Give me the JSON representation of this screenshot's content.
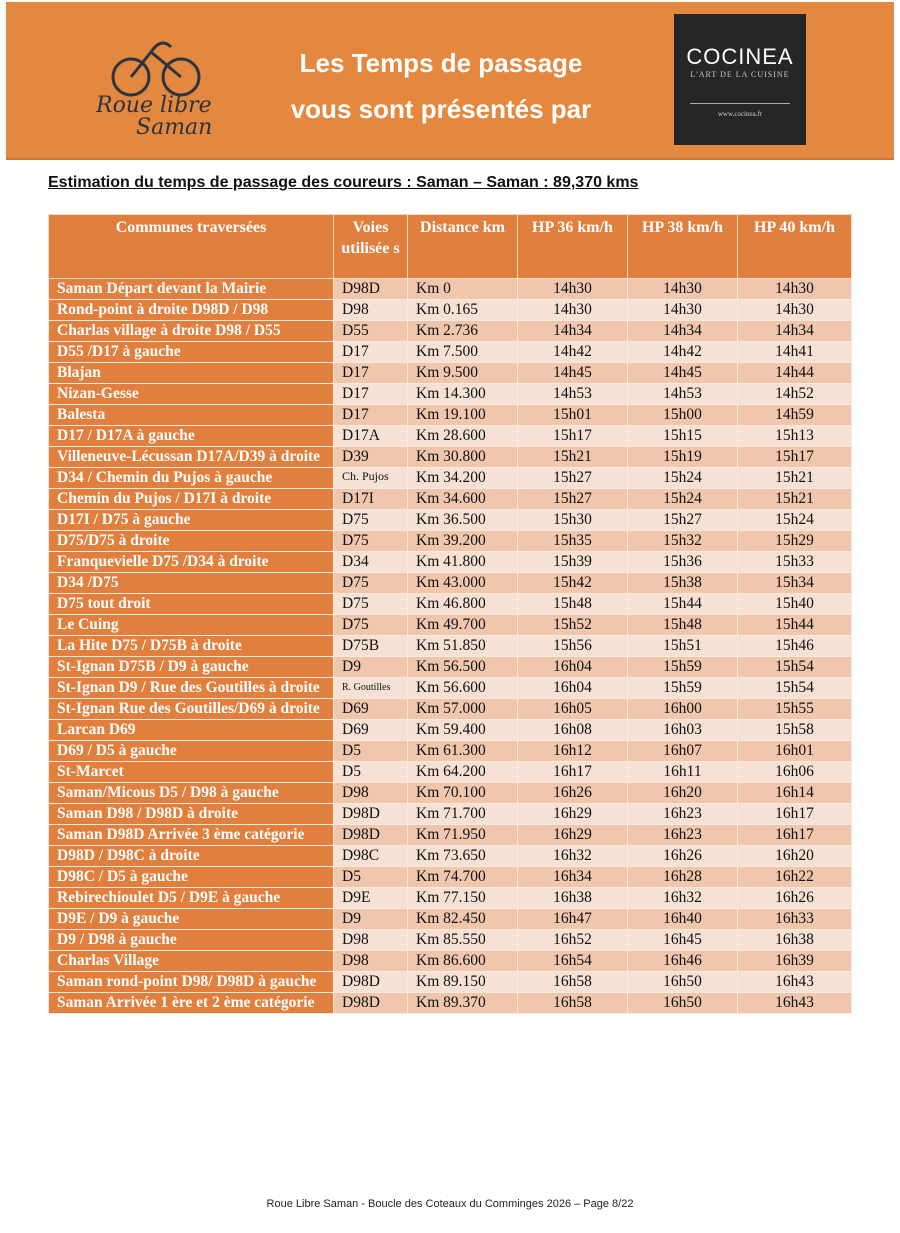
{
  "banner": {
    "title_line1": "Les Temps de passage",
    "title_line2": "vous sont présentés par",
    "logo_text": "Roue Libre Saman",
    "sponsor": {
      "name": "COCINEA",
      "tagline": "L'ART DE LA CUISINE",
      "url": "www.cocinea.fr"
    },
    "color": "#e5883f"
  },
  "heading": "Estimation du temps de passage des coureurs : Saman – Saman : 89,370 kms",
  "table": {
    "headers": [
      "Communes traversées",
      "Voies utilisée s",
      "Distance km",
      "HP 36 km/h",
      "HP 38 km/h",
      "HP 40 km/h"
    ],
    "rows": [
      [
        "Saman Départ devant la Mairie",
        "D98D",
        "Km 0",
        "14h30",
        "14h30",
        "14h30"
      ],
      [
        "Rond-point à droite D98D / D98",
        "D98",
        "Km 0.165",
        "14h30",
        "14h30",
        "14h30"
      ],
      [
        "Charlas village à droite D98 / D55",
        "D55",
        "Km 2.736",
        "14h34",
        "14h34",
        "14h34"
      ],
      [
        "D55 /D17 à gauche",
        "D17",
        "Km 7.500",
        "14h42",
        "14h42",
        "14h41"
      ],
      [
        "Blajan",
        "D17",
        "Km 9.500",
        "14h45",
        "14h45",
        "14h44"
      ],
      [
        "Nizan-Gesse",
        "D17",
        "Km 14.300",
        "14h53",
        "14h53",
        "14h52"
      ],
      [
        "Balesta",
        "D17",
        "Km 19.100",
        "15h01",
        "15h00",
        "14h59"
      ],
      [
        "D17 / D17A à gauche",
        "D17A",
        "Km 28.600",
        "15h17",
        "15h15",
        "15h13"
      ],
      [
        "Villeneuve-Lécussan D17A/D39 à droite",
        "D39",
        "Km 30.800",
        "15h21",
        "15h19",
        "15h17"
      ],
      [
        "D34 / Chemin du Pujos à gauche",
        "Ch. Pujos",
        "Km 34.200",
        "15h27",
        "15h24",
        "15h21"
      ],
      [
        "Chemin du Pujos / D17I à droite",
        "D17I",
        "Km 34.600",
        "15h27",
        "15h24",
        "15h21"
      ],
      [
        "D17I / D75 à gauche",
        "D75",
        "Km 36.500",
        "15h30",
        "15h27",
        "15h24"
      ],
      [
        "D75/D75 à droite",
        "D75",
        "Km 39.200",
        "15h35",
        "15h32",
        "15h29"
      ],
      [
        "Franquevielle D75 /D34 à droite",
        "D34",
        "Km 41.800",
        "15h39",
        "15h36",
        "15h33"
      ],
      [
        "D34 /D75",
        "D75",
        "Km 43.000",
        "15h42",
        "15h38",
        "15h34"
      ],
      [
        "D75 tout droit",
        "D75",
        "Km 46.800",
        "15h48",
        "15h44",
        "15h40"
      ],
      [
        "Le Cuing",
        "D75",
        "Km 49.700",
        "15h52",
        "15h48",
        "15h44"
      ],
      [
        "La Hite D75 / D75B à droite",
        "D75B",
        "Km 51.850",
        "15h56",
        "15h51",
        "15h46"
      ],
      [
        "St-Ignan D75B / D9 à gauche",
        "D9",
        "Km 56.500",
        "16h04",
        "15h59",
        "15h54"
      ],
      [
        "St-Ignan D9 / Rue des Goutilles à droite",
        "R. Goutilles",
        "Km 56.600",
        "16h04",
        "15h59",
        "15h54"
      ],
      [
        "St-Ignan Rue des Goutilles/D69 à droite",
        "D69",
        "Km 57.000",
        "16h05",
        "16h00",
        "15h55"
      ],
      [
        "Larcan D69",
        "D69",
        "Km 59.400",
        "16h08",
        "16h03",
        "15h58"
      ],
      [
        "D69 / D5 à gauche",
        "D5",
        "Km 61.300",
        "16h12",
        "16h07",
        "16h01"
      ],
      [
        "St-Marcet",
        "D5",
        "Km 64.200",
        "16h17",
        "16h11",
        "16h06"
      ],
      [
        "Saman/Micous D5 / D98 à gauche",
        "D98",
        "Km 70.100",
        "16h26",
        "16h20",
        "16h14"
      ],
      [
        "Saman D98 / D98D à droite",
        "D98D",
        "Km 71.700",
        "16h29",
        "16h23",
        "16h17"
      ],
      [
        "Saman D98D   Arrivée 3 ème catégorie",
        "D98D",
        "Km 71.950",
        "16h29",
        "16h23",
        "16h17"
      ],
      [
        "D98D / D98C à droite",
        "D98C",
        "Km 73.650",
        "16h32",
        "16h26",
        "16h20"
      ],
      [
        "D98C / D5 à gauche",
        "D5",
        "Km 74.700",
        "16h34",
        "16h28",
        "16h22"
      ],
      [
        "Rebirechioulet D5 / D9E à gauche",
        "D9E",
        "Km 77.150",
        "16h38",
        "16h32",
        "16h26"
      ],
      [
        "D9E / D9 à gauche",
        "D9",
        "Km 82.450",
        "16h47",
        "16h40",
        "16h33"
      ],
      [
        "D9 / D98 à gauche",
        "D98",
        "Km 85.550",
        "16h52",
        "16h45",
        "16h38"
      ],
      [
        "Charlas Village",
        "D98",
        "Km 86.600",
        "16h54",
        "16h46",
        "16h39"
      ],
      [
        "Saman rond-point D98/ D98D à gauche",
        "D98D",
        "Km 89.150",
        "16h58",
        "16h50",
        "16h43"
      ],
      [
        "Saman Arrivée 1 ère et 2 ème catégorie",
        "D98D",
        "Km 89.370",
        "16h58",
        "16h50",
        "16h43"
      ]
    ]
  },
  "footer": "Roue Libre Saman - Boucle des Coteaux du Comminges 2026 – Page 8/22"
}
